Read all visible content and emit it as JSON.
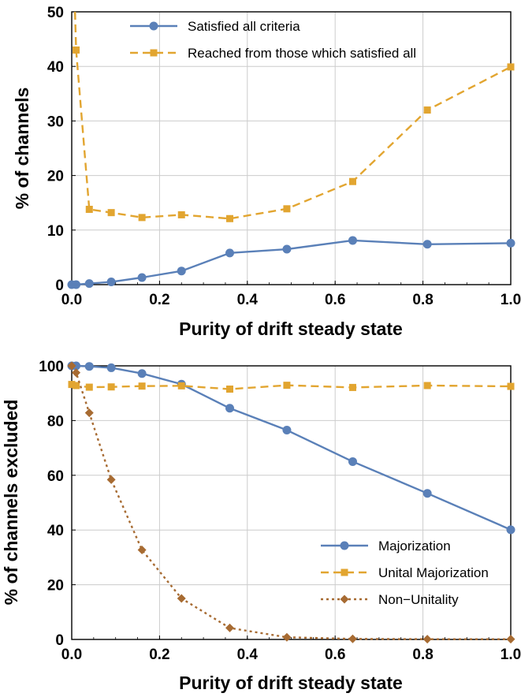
{
  "colors": {
    "blue": "#5a80b8",
    "orange": "#e2a530",
    "brown": "#a76b32"
  },
  "chart_data": [
    {
      "type": "line",
      "xlabel": "Purity of drift steady state",
      "ylabel": "% of channels",
      "xlim": [
        0,
        1
      ],
      "ylim": [
        0,
        50
      ],
      "xticks": [
        "0.0",
        "0.2",
        "0.4",
        "0.6",
        "0.8",
        "1.0"
      ],
      "yticks": [
        "0",
        "10",
        "20",
        "30",
        "40",
        "50"
      ],
      "grid": true,
      "legend_position": "top-left",
      "series": [
        {
          "name": "Satisfied all criteria",
          "color": "#5a80b8",
          "style": "solid",
          "marker": "circle",
          "x": [
            0.0,
            0.01,
            0.04,
            0.09,
            0.16,
            0.25,
            0.36,
            0.49,
            0.64,
            0.81,
            1.0
          ],
          "values": [
            0.0,
            0.0,
            0.2,
            0.5,
            1.3,
            2.5,
            5.8,
            6.5,
            8.1,
            7.4,
            7.6
          ]
        },
        {
          "name": "Reached from those which satisfied all",
          "color": "#e2a530",
          "style": "dashed",
          "marker": "square",
          "x": [
            0.01,
            0.04,
            0.09,
            0.16,
            0.25,
            0.36,
            0.49,
            0.64,
            0.81,
            1.0
          ],
          "values": [
            43.0,
            13.8,
            13.2,
            12.3,
            12.8,
            12.1,
            13.9,
            18.9,
            32.0,
            39.9
          ]
        }
      ]
    },
    {
      "type": "line",
      "xlabel": "Purity of drift steady state",
      "ylabel": "% of channels excluded",
      "xlim": [
        0,
        1
      ],
      "ylim": [
        0,
        100
      ],
      "xticks": [
        "0.0",
        "0.2",
        "0.4",
        "0.6",
        "0.8",
        "1.0"
      ],
      "yticks": [
        "0",
        "20",
        "40",
        "60",
        "80",
        "100"
      ],
      "grid": true,
      "legend_position": "bottom-right",
      "series": [
        {
          "name": "Majorization",
          "color": "#5a80b8",
          "style": "solid",
          "marker": "circle",
          "x": [
            0.0,
            0.01,
            0.04,
            0.09,
            0.16,
            0.25,
            0.36,
            0.49,
            0.64,
            0.81,
            1.0
          ],
          "values": [
            100.0,
            100.0,
            99.8,
            99.3,
            97.2,
            93.3,
            84.5,
            76.5,
            65.0,
            53.4,
            40.1
          ]
        },
        {
          "name": "Unital Majorization",
          "color": "#e2a530",
          "style": "dashed",
          "marker": "square",
          "x": [
            0.0,
            0.01,
            0.04,
            0.09,
            0.16,
            0.25,
            0.36,
            0.49,
            0.64,
            0.81,
            1.0
          ],
          "values": [
            93.2,
            92.8,
            92.2,
            92.3,
            92.6,
            92.7,
            91.5,
            92.9,
            92.1,
            92.8,
            92.5
          ]
        },
        {
          "name": "Non−Unitality",
          "color": "#a76b32",
          "style": "dotted",
          "marker": "diamond",
          "x": [
            0.0,
            0.01,
            0.04,
            0.09,
            0.16,
            0.25,
            0.36,
            0.49,
            0.64,
            0.81,
            1.0
          ],
          "values": [
            100.0,
            97.5,
            82.8,
            58.4,
            32.7,
            15.0,
            4.2,
            0.8,
            0.2,
            0.1,
            0.1
          ]
        }
      ]
    }
  ]
}
